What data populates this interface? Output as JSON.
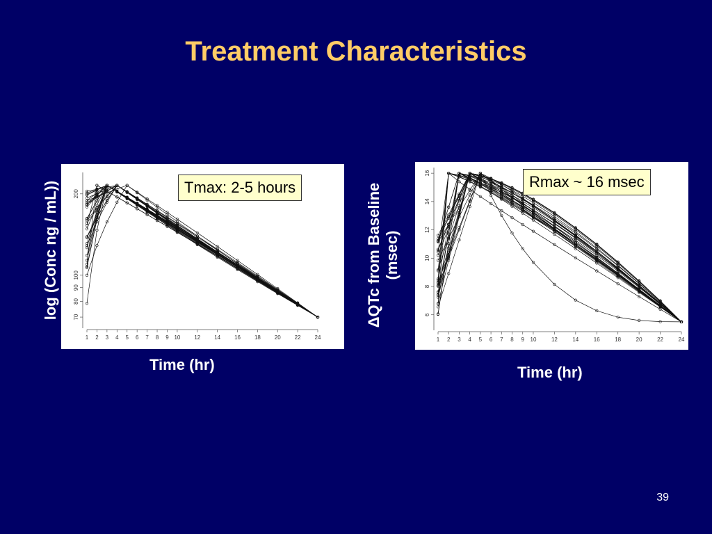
{
  "slide": {
    "title": "Treatment Characteristics",
    "page_number": "39",
    "colors": {
      "background": "#000066",
      "title": "#ffcc66",
      "text": "#ffffff",
      "callout_bg": "#ffffcc"
    }
  },
  "chart_data": [
    {
      "type": "line",
      "name": "concentration",
      "ylabel": "log (Conc ng / mL))",
      "xlabel": "Time (hr)",
      "annotation": "Tmax: 2-5 hours",
      "x_ticks": [
        1,
        2,
        3,
        4,
        5,
        6,
        7,
        8,
        9,
        10,
        12,
        14,
        16,
        18,
        20,
        22,
        24
      ],
      "x_tick_labels": [
        "1",
        "2",
        "3",
        "4",
        "5",
        "6",
        "7",
        "8",
        "9",
        "10",
        "12",
        "14",
        "16",
        "18",
        "20",
        "22",
        "24"
      ],
      "y_ticks": [
        70,
        80,
        90,
        100,
        200
      ],
      "y_tick_labels": [
        "70",
        "80",
        "90",
        "100",
        "200"
      ],
      "log_y": true,
      "xlim": [
        1,
        24
      ],
      "ylim": [
        66,
        240
      ],
      "profiles": {
        "n": 30,
        "start_value_range": [
          78,
          205
        ],
        "peak_value": 215,
        "peak_time_range": [
          2,
          5
        ],
        "end_value": 70,
        "end_time": 24
      }
    },
    {
      "type": "line",
      "name": "dqtc",
      "ylabel_line1": "ΔQTc from Baseline",
      "ylabel_line2": "(msec)",
      "xlabel": "Time (hr)",
      "annotation": "Rmax ~ 16 msec",
      "x_ticks": [
        1,
        2,
        3,
        4,
        5,
        6,
        7,
        8,
        9,
        10,
        12,
        14,
        16,
        18,
        20,
        22,
        24
      ],
      "x_tick_labels": [
        "1",
        "2",
        "3",
        "4",
        "5",
        "6",
        "7",
        "8",
        "9",
        "10",
        "12",
        "14",
        "16",
        "18",
        "20",
        "22",
        "24"
      ],
      "y_ticks": [
        6,
        8,
        10,
        12,
        14,
        16
      ],
      "y_tick_labels": [
        "6",
        "8",
        "10",
        "12",
        "14",
        "16"
      ],
      "log_y": false,
      "xlim": [
        1,
        24
      ],
      "ylim": [
        5.2,
        16.4
      ],
      "profiles": {
        "n": 30,
        "start_value_range": [
          6,
          12.5
        ],
        "peak_value": 16,
        "peak_time_range": [
          2,
          5
        ],
        "end_value": 5.5,
        "end_time": 24
      }
    }
  ]
}
